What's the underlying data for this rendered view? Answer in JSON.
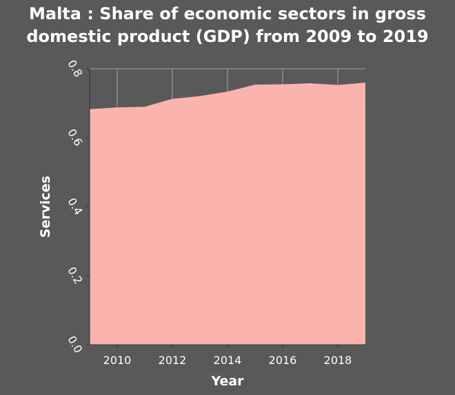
{
  "chart_data": {
    "type": "area",
    "title_lines": [
      "Malta : Share of economic sectors in gross",
      "domestic product (GDP) from 2009 to 2019"
    ],
    "xlabel": "Year",
    "ylabel": "Services",
    "x": [
      2009,
      2010,
      2011,
      2012,
      2013,
      2014,
      2015,
      2016,
      2017,
      2018,
      2019
    ],
    "series": [
      {
        "name": "",
        "values": [
          0.683,
          0.688,
          0.69,
          0.713,
          0.721,
          0.734,
          0.754,
          0.755,
          0.758,
          0.753,
          0.76
        ]
      }
    ],
    "xlim": [
      2009,
      2019
    ],
    "ylim": [
      0,
      0.8
    ],
    "xticks": [
      "2010",
      "2012",
      "2014",
      "2016",
      "2018"
    ],
    "yticks": [
      "0.0",
      "0.2",
      "0.4",
      "0.6",
      "0.8"
    ],
    "grid": true,
    "colors": {
      "fill": "#fbb3ad",
      "background": "#595959",
      "grid": "#a6a6a6",
      "text": "#ffffff"
    }
  }
}
